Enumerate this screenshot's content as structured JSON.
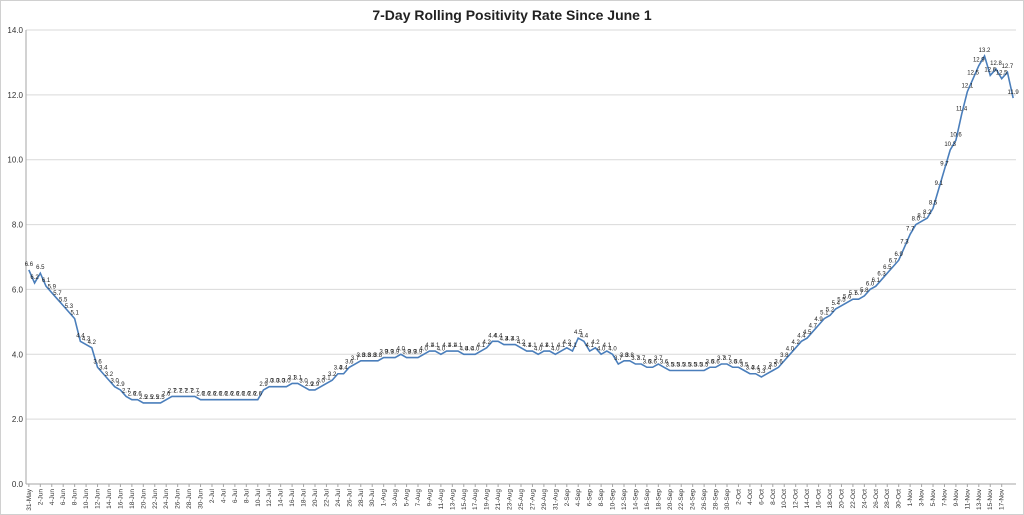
{
  "chart_data": {
    "type": "line",
    "title": "7-Day Rolling Positivity Rate Since June 1",
    "xlabel": "",
    "ylabel": "",
    "ylim": [
      0,
      14
    ],
    "yticks": [
      "0.0",
      "2.0",
      "4.0",
      "6.0",
      "8.0",
      "10.0",
      "12.0",
      "14.0"
    ],
    "grid": true,
    "legend": "none",
    "line_color": "#4a7ebb",
    "xtick_labels": [
      "31-May",
      "2-Jun",
      "4-Jun",
      "6-Jun",
      "8-Jun",
      "10-Jun",
      "12-Jun",
      "14-Jun",
      "16-Jun",
      "18-Jun",
      "20-Jun",
      "22-Jun",
      "24-Jun",
      "26-Jun",
      "28-Jun",
      "30-Jun",
      "2-Jul",
      "4-Jul",
      "6-Jul",
      "8-Jul",
      "10-Jul",
      "12-Jul",
      "14-Jul",
      "16-Jul",
      "18-Jul",
      "20-Jul",
      "22-Jul",
      "24-Jul",
      "26-Jul",
      "28-Jul",
      "30-Jul",
      "1-Aug",
      "3-Aug",
      "5-Aug",
      "7-Aug",
      "9-Aug",
      "11-Aug",
      "13-Aug",
      "15-Aug",
      "17-Aug",
      "19-Aug",
      "21-Aug",
      "23-Aug",
      "25-Aug",
      "27-Aug",
      "29-Aug",
      "31-Aug",
      "2-Sep",
      "4-Sep",
      "6-Sep",
      "8-Sep",
      "10-Sep",
      "12-Sep",
      "14-Sep",
      "16-Sep",
      "18-Sep",
      "20-Sep",
      "22-Sep",
      "24-Sep",
      "26-Sep",
      "28-Sep",
      "30-Sep",
      "2-Oct",
      "4-Oct",
      "6-Oct",
      "8-Oct",
      "10-Oct",
      "12-Oct",
      "14-Oct",
      "16-Oct",
      "18-Oct",
      "20-Oct",
      "22-Oct",
      "24-Oct",
      "26-Oct",
      "28-Oct",
      "30-Oct",
      "1-Nov",
      "3-Nov",
      "5-Nov",
      "7-Nov",
      "9-Nov",
      "11-Nov",
      "13-Nov",
      "15-Nov",
      "17-Nov"
    ],
    "values": [
      6.6,
      6.2,
      6.5,
      6.1,
      5.9,
      5.7,
      5.5,
      5.3,
      5.1,
      4.4,
      4.3,
      4.2,
      3.6,
      3.4,
      3.2,
      3.0,
      2.9,
      2.7,
      2.6,
      2.6,
      2.5,
      2.5,
      2.5,
      2.5,
      2.6,
      2.7,
      2.7,
      2.7,
      2.7,
      2.7,
      2.6,
      2.6,
      2.6,
      2.6,
      2.6,
      2.6,
      2.6,
      2.6,
      2.6,
      2.6,
      2.6,
      2.9,
      3.0,
      3.0,
      3.0,
      3.0,
      3.1,
      3.1,
      3.0,
      2.9,
      2.9,
      3.0,
      3.1,
      3.2,
      3.4,
      3.4,
      3.6,
      3.7,
      3.8,
      3.8,
      3.8,
      3.8,
      3.9,
      3.9,
      3.9,
      4.0,
      3.9,
      3.9,
      3.9,
      4.0,
      4.1,
      4.1,
      4.0,
      4.1,
      4.1,
      4.1,
      4.0,
      4.0,
      4.0,
      4.1,
      4.2,
      4.4,
      4.4,
      4.3,
      4.3,
      4.3,
      4.2,
      4.1,
      4.1,
      4.0,
      4.1,
      4.1,
      4.0,
      4.1,
      4.2,
      4.1,
      4.5,
      4.4,
      4.1,
      4.2,
      4.0,
      4.1,
      4.0,
      3.7,
      3.8,
      3.8,
      3.7,
      3.7,
      3.6,
      3.6,
      3.7,
      3.6,
      3.5,
      3.5,
      3.5,
      3.5,
      3.5,
      3.5,
      3.5,
      3.6,
      3.6,
      3.7,
      3.7,
      3.6,
      3.6,
      3.5,
      3.4,
      3.4,
      3.3,
      3.4,
      3.5,
      3.6,
      3.8,
      4.0,
      4.2,
      4.4,
      4.5,
      4.7,
      4.9,
      5.1,
      5.2,
      5.4,
      5.5,
      5.6,
      5.7,
      5.7,
      5.8,
      6.0,
      6.1,
      6.3,
      6.5,
      6.7,
      6.9,
      7.3,
      7.7,
      8.0,
      8.1,
      8.2,
      8.5,
      9.1,
      9.7,
      10.3,
      10.6,
      11.4,
      12.1,
      12.5,
      12.9,
      13.2,
      12.6,
      12.8,
      12.5,
      12.7,
      11.9
    ]
  }
}
